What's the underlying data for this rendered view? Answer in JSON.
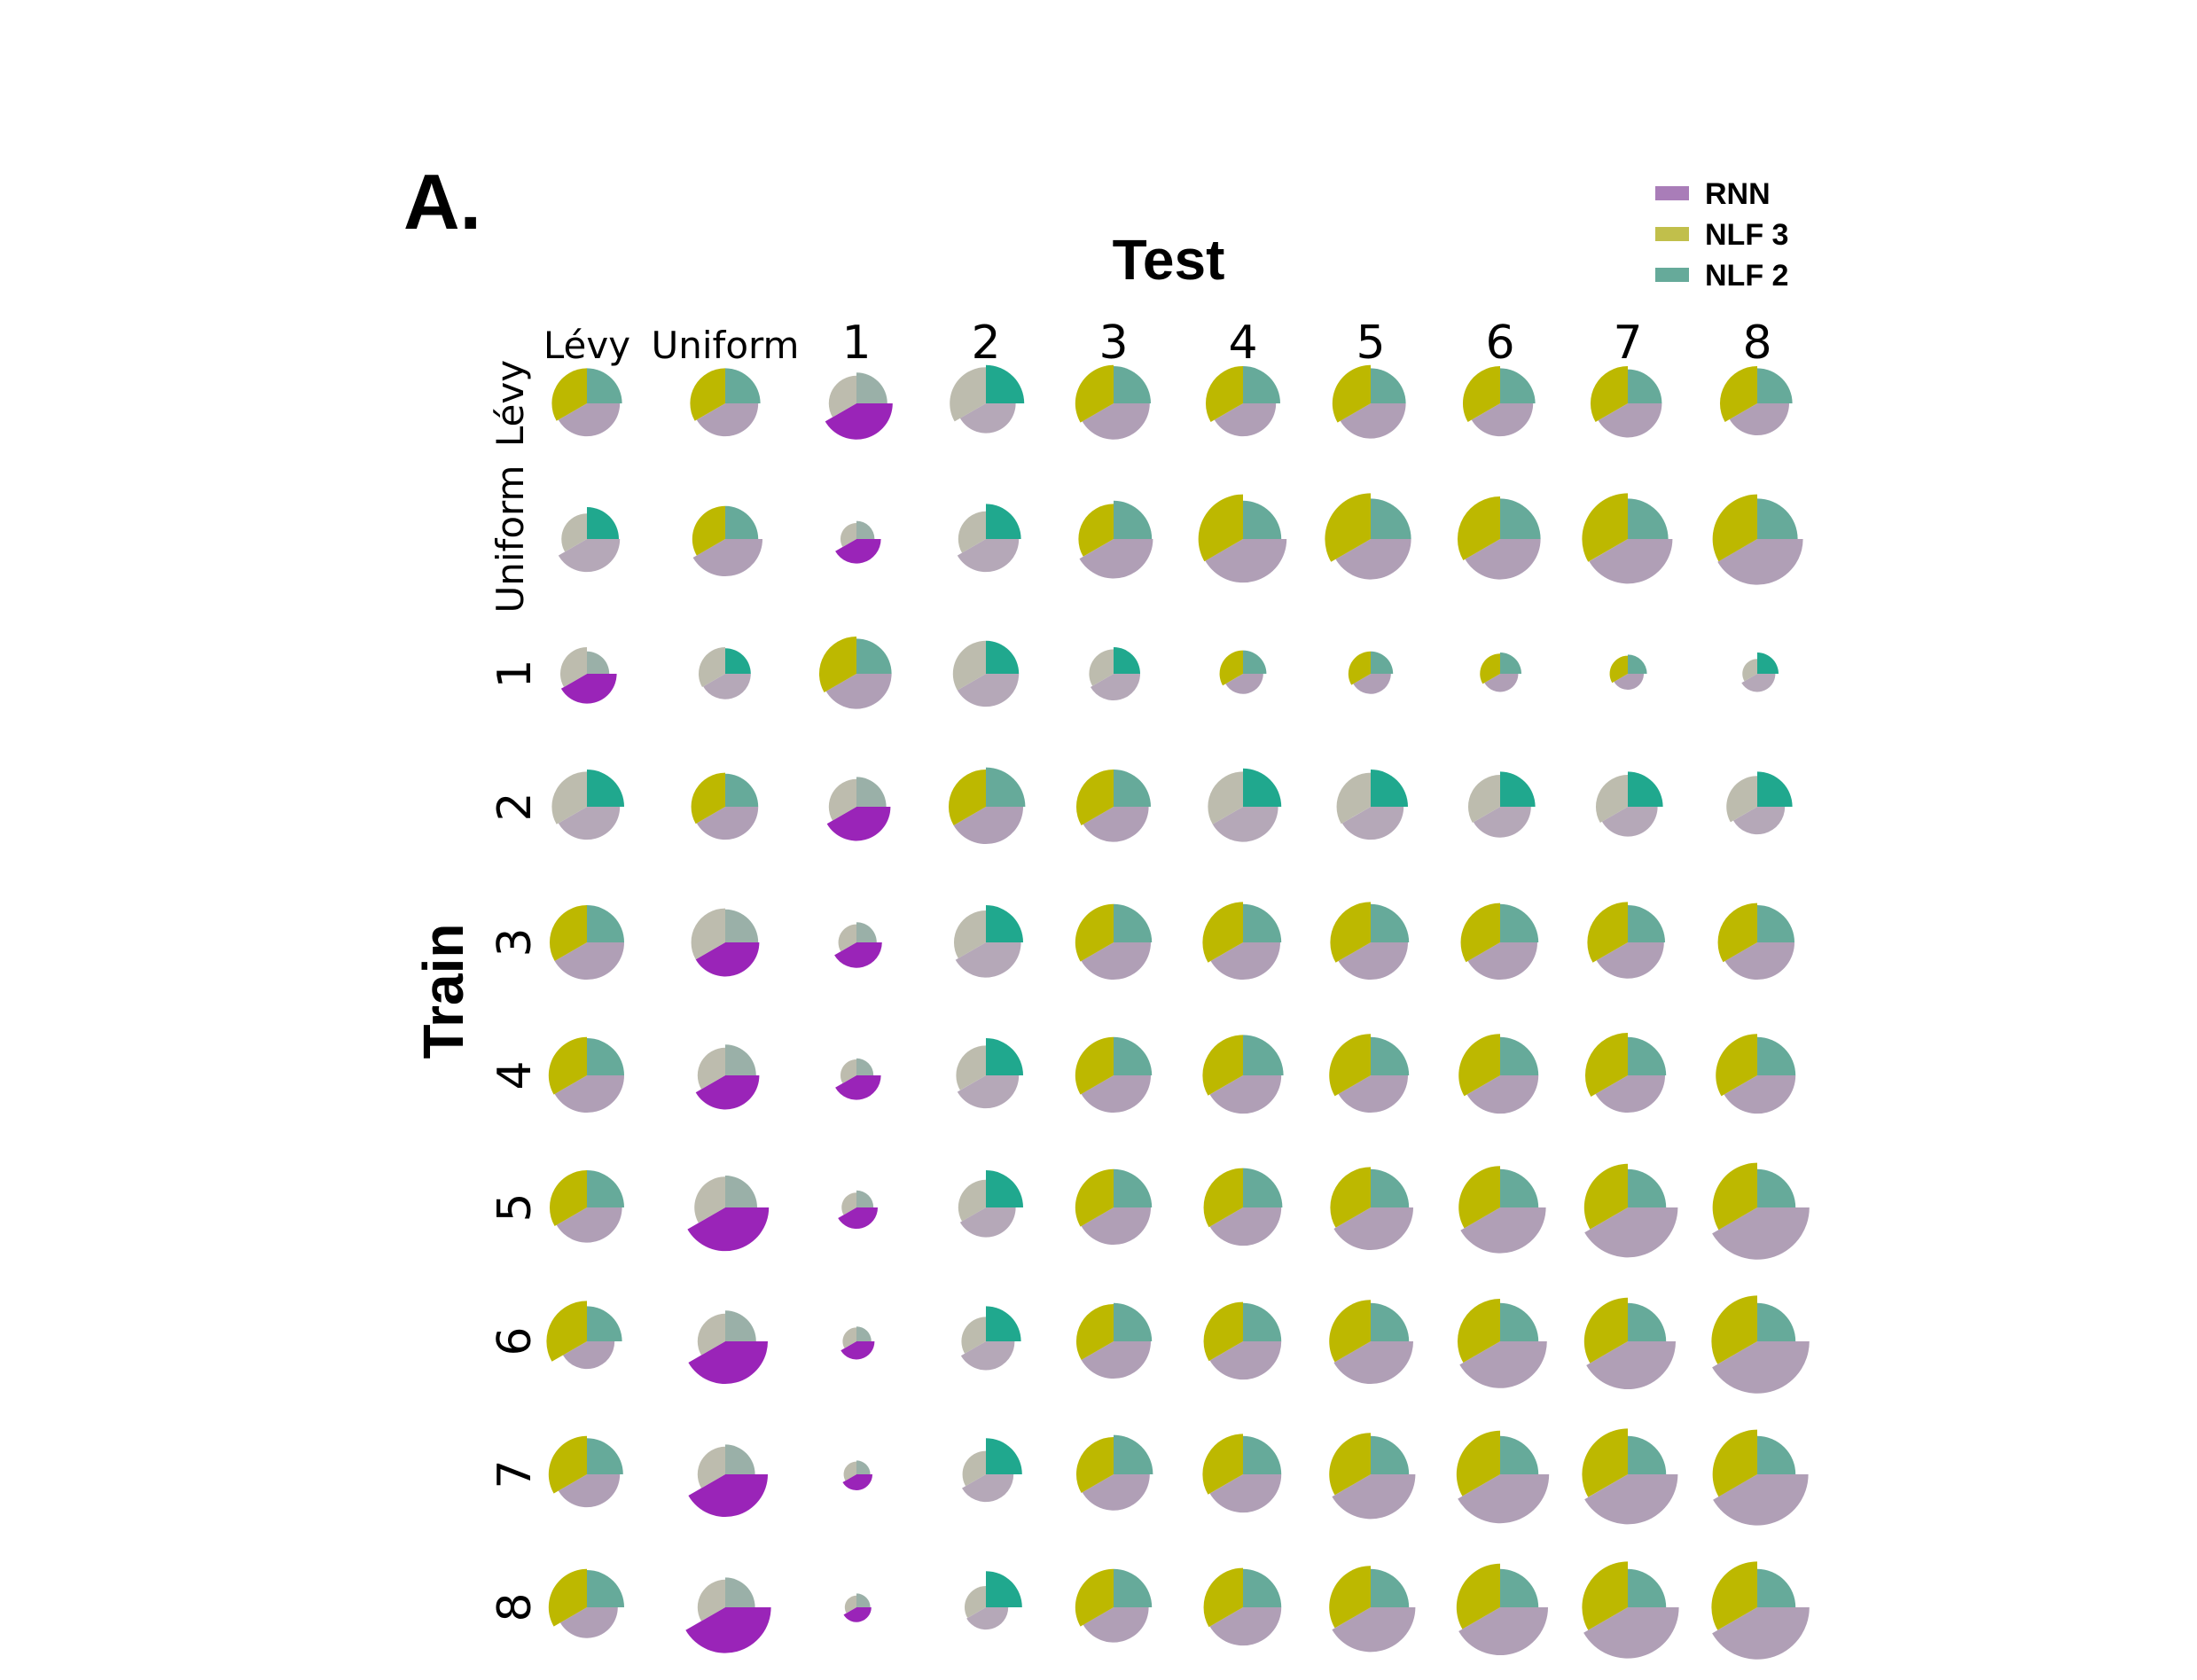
{
  "chart_data": {
    "type": "pie",
    "panel_label": "A.",
    "col_title": "Test",
    "row_title": "Train",
    "columns": [
      "Lévy",
      "Uniform",
      "1",
      "2",
      "3",
      "4",
      "5",
      "6",
      "7",
      "8"
    ],
    "rows": [
      "Lévy",
      "Uniform",
      "1",
      "2",
      "3",
      "4",
      "5",
      "6",
      "7",
      "8"
    ],
    "legend": [
      {
        "name": "RNN",
        "color": "#a97db8"
      },
      {
        "name": "NLF 3",
        "color": "#c1bf4b"
      },
      {
        "name": "NLF 2",
        "color": "#66aa9a"
      }
    ],
    "wedge_order_note": "each glyph has three wedges: NLF 2 (top-right), RNN (bottom-right), NLF 3 (left); wedge radius encodes relative magnitude, highlighted wedge is the best model",
    "values_scale": "relative magnitude 0-1 per wedge",
    "cells": [
      [
        [
          0.66,
          0.62,
          0.66,
          "n"
        ],
        [
          0.66,
          0.62,
          0.66,
          "n"
        ],
        [
          0.58,
          0.68,
          0.52,
          "r"
        ],
        [
          0.72,
          0.56,
          0.68,
          "t"
        ],
        [
          0.7,
          0.68,
          0.72,
          "n"
        ],
        [
          0.7,
          0.62,
          0.7,
          "n"
        ],
        [
          0.66,
          0.66,
          0.72,
          "n"
        ],
        [
          0.66,
          0.62,
          0.7,
          "n"
        ],
        [
          0.64,
          0.64,
          0.7,
          "n"
        ],
        [
          0.66,
          0.6,
          0.7,
          "n"
        ]
      ],
      [
        [
          0.6,
          0.62,
          0.48,
          "t"
        ],
        [
          0.62,
          0.7,
          0.62,
          "n"
        ],
        [
          0.34,
          0.46,
          0.3,
          "r"
        ],
        [
          0.66,
          0.62,
          0.52,
          "t"
        ],
        [
          0.72,
          0.74,
          0.66,
          "n"
        ],
        [
          0.72,
          0.82,
          0.84,
          "n"
        ],
        [
          0.76,
          0.76,
          0.86,
          "n"
        ],
        [
          0.76,
          0.76,
          0.8,
          "n"
        ],
        [
          0.76,
          0.84,
          0.86,
          "n"
        ],
        [
          0.76,
          0.86,
          0.84,
          "n"
        ]
      ],
      [
        [
          0.42,
          0.56,
          0.5,
          "r"
        ],
        [
          0.48,
          0.48,
          0.5,
          "t"
        ],
        [
          0.66,
          0.66,
          0.7,
          "n"
        ],
        [
          0.62,
          0.62,
          0.62,
          "t"
        ],
        [
          0.5,
          0.5,
          0.46,
          "t"
        ],
        [
          0.44,
          0.38,
          0.44,
          "n"
        ],
        [
          0.42,
          0.38,
          0.42,
          "n"
        ],
        [
          0.4,
          0.34,
          0.38,
          "n"
        ],
        [
          0.36,
          0.3,
          0.34,
          "n"
        ],
        [
          0.4,
          0.34,
          0.28,
          "t"
        ]
      ],
      [
        [
          0.7,
          0.62,
          0.66,
          "t"
        ],
        [
          0.62,
          0.62,
          0.64,
          "n"
        ],
        [
          0.56,
          0.64,
          0.52,
          "r"
        ],
        [
          0.74,
          0.7,
          0.7,
          "n"
        ],
        [
          0.7,
          0.66,
          0.7,
          "n"
        ],
        [
          0.72,
          0.66,
          0.66,
          "t"
        ],
        [
          0.7,
          0.62,
          0.64,
          "t"
        ],
        [
          0.66,
          0.58,
          0.6,
          "t"
        ],
        [
          0.66,
          0.56,
          0.6,
          "t"
        ],
        [
          0.66,
          0.52,
          0.58,
          "t"
        ]
      ],
      [
        [
          0.7,
          0.7,
          0.7,
          "n"
        ],
        [
          0.62,
          0.64,
          0.64,
          "r"
        ],
        [
          0.38,
          0.48,
          0.34,
          "r"
        ],
        [
          0.7,
          0.66,
          0.6,
          "t"
        ],
        [
          0.72,
          0.7,
          0.72,
          "n"
        ],
        [
          0.72,
          0.7,
          0.76,
          "n"
        ],
        [
          0.72,
          0.7,
          0.76,
          "n"
        ],
        [
          0.72,
          0.7,
          0.74,
          "n"
        ],
        [
          0.7,
          0.68,
          0.76,
          "n"
        ],
        [
          0.7,
          0.7,
          0.74,
          "n"
        ]
      ],
      [
        [
          0.7,
          0.7,
          0.72,
          "n"
        ],
        [
          0.58,
          0.64,
          0.52,
          "r"
        ],
        [
          0.32,
          0.46,
          0.3,
          "r"
        ],
        [
          0.7,
          0.62,
          0.56,
          "t"
        ],
        [
          0.72,
          0.7,
          0.72,
          "n"
        ],
        [
          0.76,
          0.72,
          0.76,
          "n"
        ],
        [
          0.72,
          0.7,
          0.78,
          "n"
        ],
        [
          0.72,
          0.72,
          0.78,
          "n"
        ],
        [
          0.72,
          0.7,
          0.8,
          "n"
        ],
        [
          0.72,
          0.72,
          0.78,
          "n"
        ]
      ],
      [
        [
          0.7,
          0.66,
          0.7,
          "n"
        ],
        [
          0.6,
          0.82,
          0.58,
          "r"
        ],
        [
          0.32,
          0.4,
          0.28,
          "r"
        ],
        [
          0.7,
          0.56,
          0.52,
          "t"
        ],
        [
          0.72,
          0.7,
          0.72,
          "n"
        ],
        [
          0.74,
          0.72,
          0.74,
          "n"
        ],
        [
          0.72,
          0.8,
          0.76,
          "n"
        ],
        [
          0.72,
          0.86,
          0.78,
          "n"
        ],
        [
          0.72,
          0.94,
          0.82,
          "n"
        ],
        [
          0.72,
          0.98,
          0.84,
          "n"
        ]
      ],
      [
        [
          0.66,
          0.52,
          0.76,
          "n"
        ],
        [
          0.58,
          0.8,
          0.52,
          "r"
        ],
        [
          0.28,
          0.34,
          0.26,
          "r"
        ],
        [
          0.66,
          0.54,
          0.46,
          "t"
        ],
        [
          0.72,
          0.7,
          0.7,
          "n"
        ],
        [
          0.72,
          0.72,
          0.74,
          "n"
        ],
        [
          0.72,
          0.8,
          0.78,
          "n"
        ],
        [
          0.72,
          0.88,
          0.8,
          "n"
        ],
        [
          0.72,
          0.9,
          0.82,
          "n"
        ],
        [
          0.72,
          0.98,
          0.86,
          "n"
        ]
      ],
      [
        [
          0.68,
          0.62,
          0.72,
          "n"
        ],
        [
          0.56,
          0.8,
          0.52,
          "r"
        ],
        [
          0.26,
          0.3,
          0.24,
          "r"
        ],
        [
          0.68,
          0.52,
          0.44,
          "t"
        ],
        [
          0.74,
          0.68,
          0.7,
          "n"
        ],
        [
          0.72,
          0.72,
          0.76,
          "n"
        ],
        [
          0.72,
          0.84,
          0.78,
          "n"
        ],
        [
          0.72,
          0.92,
          0.82,
          "n"
        ],
        [
          0.72,
          0.94,
          0.86,
          "n"
        ],
        [
          0.72,
          0.96,
          0.84,
          "n"
        ]
      ],
      [
        [
          0.7,
          0.58,
          0.72,
          "n"
        ],
        [
          0.56,
          0.86,
          0.52,
          "r"
        ],
        [
          0.26,
          0.28,
          0.22,
          "r"
        ],
        [
          0.68,
          0.42,
          0.4,
          "t"
        ],
        [
          0.72,
          0.66,
          0.72,
          "n"
        ],
        [
          0.72,
          0.72,
          0.74,
          "n"
        ],
        [
          0.72,
          0.84,
          0.78,
          "n"
        ],
        [
          0.72,
          0.9,
          0.82,
          "n"
        ],
        [
          0.72,
          0.96,
          0.86,
          "n"
        ],
        [
          0.72,
          0.98,
          0.86,
          "n"
        ]
      ]
    ]
  }
}
